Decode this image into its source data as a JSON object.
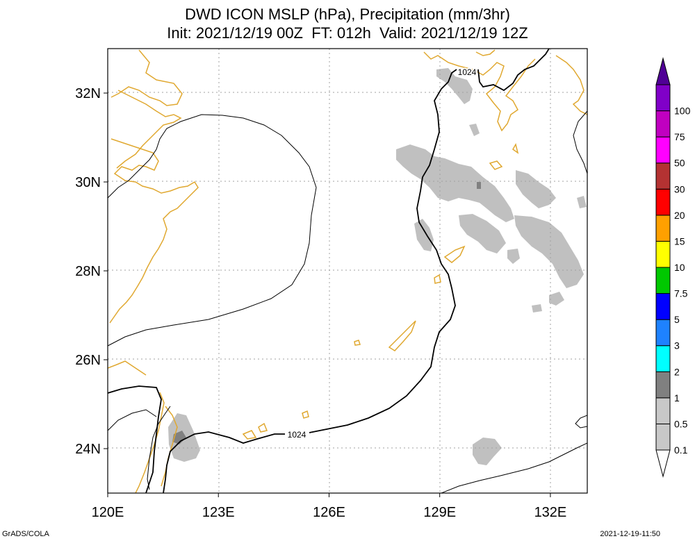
{
  "header": {
    "title_line1": "DWD ICON MSLP (hPa), Precipitation (mm/3hr)",
    "title_line2": "Init: 2021/12/19 00Z  FT: 012h  Valid: 2021/12/19 12Z"
  },
  "map": {
    "lon_ticks": [
      {
        "value": 120,
        "label": "120E"
      },
      {
        "value": 123,
        "label": "123E"
      },
      {
        "value": 126,
        "label": "126E"
      },
      {
        "value": 129,
        "label": "129E"
      },
      {
        "value": 132,
        "label": "132E"
      }
    ],
    "lat_ticks": [
      {
        "value": 24,
        "label": "24N"
      },
      {
        "value": 26,
        "label": "26N"
      },
      {
        "value": 28,
        "label": "28N"
      },
      {
        "value": 30,
        "label": "30N"
      },
      {
        "value": 32,
        "label": "32N"
      }
    ],
    "lon_range": [
      120,
      133
    ],
    "lat_range": [
      23,
      33
    ],
    "isobar_labels": [
      "1024",
      "1024"
    ],
    "colors": {
      "coast": "#e0a830",
      "isobar": "#000000",
      "grid": "#a0a0a0",
      "precip_light": "#c0c0c0",
      "precip_mid": "#808080"
    }
  },
  "colorbar": {
    "levels": [
      {
        "label": "0.1",
        "color": "#c8c8c8"
      },
      {
        "label": "0.5",
        "color": "#c8c8c8"
      },
      {
        "label": "1",
        "color": "#808080"
      },
      {
        "label": "2",
        "color": "#00ffff"
      },
      {
        "label": "3",
        "color": "#1e82ff"
      },
      {
        "label": "5",
        "color": "#0000ff"
      },
      {
        "label": "7.5",
        "color": "#00c800"
      },
      {
        "label": "10",
        "color": "#ffff00"
      },
      {
        "label": "15",
        "color": "#ffa000"
      },
      {
        "label": "20",
        "color": "#ff0000"
      },
      {
        "label": "30",
        "color": "#b43232"
      },
      {
        "label": "50",
        "color": "#ff00ff"
      },
      {
        "label": "75",
        "color": "#c000c0"
      },
      {
        "label": "100",
        "color": "#8000c8"
      }
    ],
    "min_color": "#ffffff",
    "max_color": "#500096"
  },
  "footer": {
    "left": "GrADS/COLA",
    "right": "2021-12-19-11:50"
  }
}
